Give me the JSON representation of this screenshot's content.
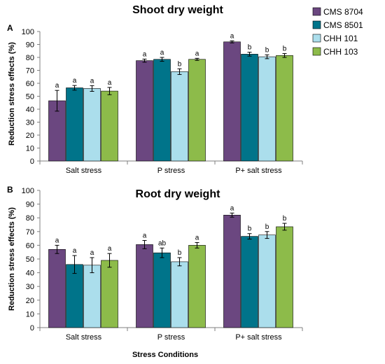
{
  "chart_data": [
    {
      "type": "bar",
      "panel": "A",
      "title": "Shoot dry weight",
      "ylabel": "Reduction stress effects (%)",
      "ylim": [
        0,
        100
      ],
      "yticks": [
        0,
        10,
        20,
        30,
        40,
        50,
        60,
        70,
        80,
        90,
        100
      ],
      "categories": [
        "Salt stress",
        "P stress",
        "P+ salt stress"
      ],
      "series": [
        {
          "name": "CMS 8704",
          "color": "#6B4780",
          "values": [
            46.5,
            77.5,
            92
          ],
          "errors": [
            8,
            1.2,
            0.8
          ],
          "letters": [
            "a",
            "a",
            "a"
          ]
        },
        {
          "name": "CMS 8501",
          "color": "#00748A",
          "values": [
            56.5,
            78.5,
            82.5
          ],
          "errors": [
            1.8,
            1.5,
            1.5
          ],
          "letters": [
            "a",
            "a",
            "b"
          ]
        },
        {
          "name": "CHH 101",
          "color": "#ABDEEC",
          "values": [
            56,
            69,
            80.5
          ],
          "errors": [
            2.2,
            2.2,
            1.5
          ],
          "letters": [
            "a",
            "b",
            "b"
          ]
        },
        {
          "name": "CHH 103",
          "color": "#8DBB4A",
          "values": [
            54,
            78.5,
            81.5
          ],
          "errors": [
            2.8,
            0.8,
            1.5
          ],
          "letters": [
            "a",
            "a",
            "b"
          ]
        }
      ],
      "grid": false,
      "legend": "top-right"
    },
    {
      "type": "bar",
      "panel": "B",
      "title": "Root dry weight",
      "ylabel": "Reduction stress effects (%)",
      "xlabel": "Stress Conditions",
      "ylim": [
        0,
        100
      ],
      "yticks": [
        0,
        10,
        20,
        30,
        40,
        50,
        60,
        70,
        80,
        90,
        100
      ],
      "categories": [
        "Salt stress",
        "P stress",
        "P+ salt stress"
      ],
      "series": [
        {
          "name": "CMS 8704",
          "color": "#6B4780",
          "values": [
            57,
            60.5,
            82
          ],
          "errors": [
            3,
            3,
            1.5
          ],
          "letters": [
            "a",
            "a",
            "a"
          ]
        },
        {
          "name": "CMS 8501",
          "color": "#00748A",
          "values": [
            46,
            54.5,
            66.5
          ],
          "errors": [
            6.5,
            3.5,
            2
          ],
          "letters": [
            "a",
            "ab",
            "b"
          ]
        },
        {
          "name": "CHH 101",
          "color": "#ABDEEC",
          "values": [
            45.5,
            48,
            67.5
          ],
          "errors": [
            5.5,
            3,
            2.5
          ],
          "letters": [
            "a",
            "b",
            "b"
          ]
        },
        {
          "name": "CHH 103",
          "color": "#8DBB4A",
          "values": [
            49,
            60,
            73.5
          ],
          "errors": [
            5,
            2,
            2.5
          ],
          "letters": [
            "a",
            "a",
            "b"
          ]
        }
      ],
      "grid": false
    }
  ],
  "legend": {
    "items": [
      {
        "name": "CMS 8704",
        "color": "#6B4780"
      },
      {
        "name": "CMS 8501",
        "color": "#00748A"
      },
      {
        "name": "CHH 101",
        "color": "#ABDEEC"
      },
      {
        "name": "CHH 103",
        "color": "#8DBB4A"
      }
    ]
  }
}
